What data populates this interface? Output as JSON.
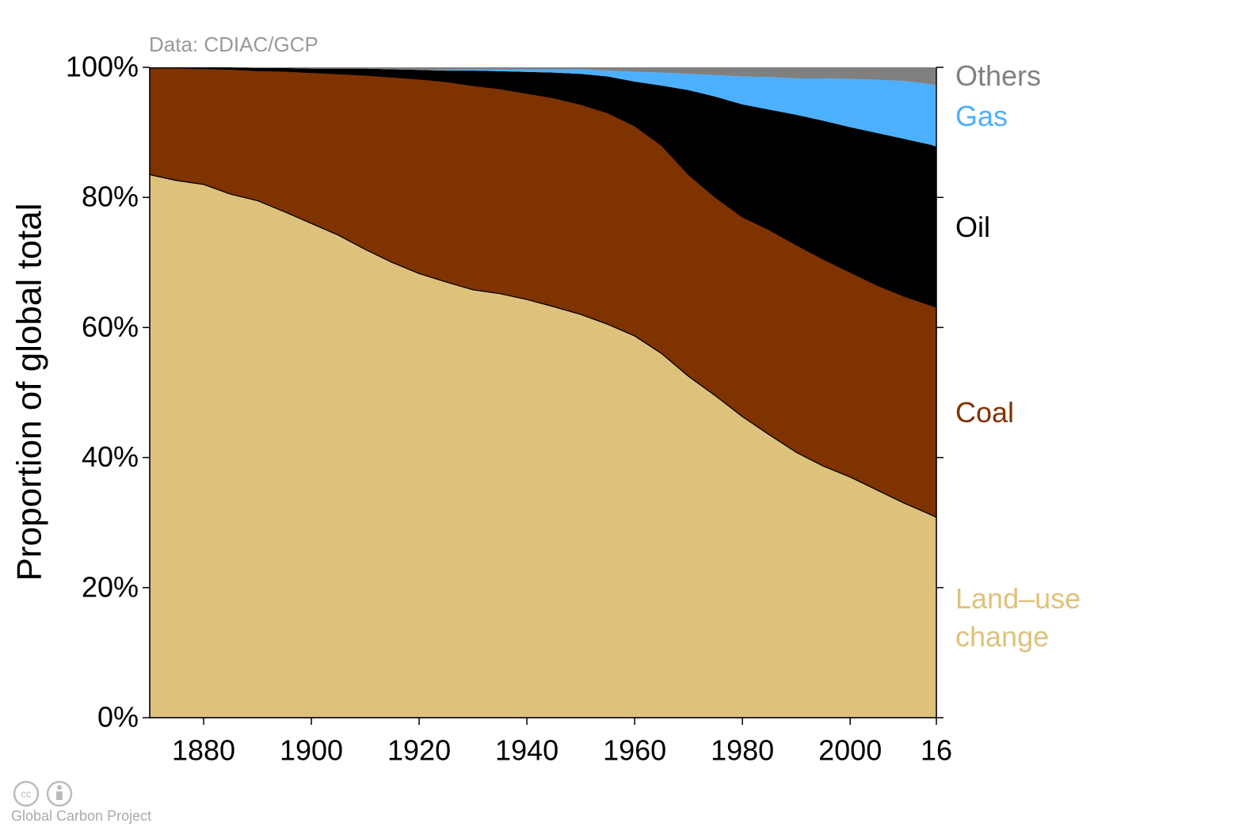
{
  "chart_data": {
    "type": "stacked-area",
    "source": "Data: CDIAC/GCP",
    "ylabel": "Proportion of global total",
    "footer": "Global Carbon Project",
    "x": [
      1870,
      1875,
      1880,
      1885,
      1890,
      1895,
      1900,
      1905,
      1910,
      1915,
      1920,
      1925,
      1930,
      1935,
      1940,
      1945,
      1950,
      1955,
      1960,
      1965,
      1970,
      1975,
      1980,
      1985,
      1990,
      1995,
      2000,
      2005,
      2010,
      2015,
      2016
    ],
    "xlim": [
      1870,
      2016
    ],
    "xticks": [
      1880,
      1900,
      1920,
      1940,
      1960,
      1980,
      2000,
      {
        "value": 2016,
        "label": "16"
      }
    ],
    "ylim": [
      0,
      100
    ],
    "yticks": [
      {
        "value": 0,
        "label": "0%"
      },
      {
        "value": 20,
        "label": "20%"
      },
      {
        "value": 40,
        "label": "40%"
      },
      {
        "value": 60,
        "label": "60%"
      },
      {
        "value": 80,
        "label": "80%"
      },
      {
        "value": 100,
        "label": "100%"
      }
    ],
    "series": [
      {
        "name": "Land–use change",
        "color": "#dec27c",
        "values": [
          83.5,
          82.6,
          82,
          80.5,
          79.5,
          77.8,
          76,
          74.2,
          72,
          70,
          68.3,
          67,
          65.8,
          65.2,
          64.3,
          63.2,
          62,
          60.5,
          58.7,
          56,
          52.5,
          49.5,
          46.3,
          43.5,
          40.8,
          38.7,
          37,
          35,
          33,
          31.2,
          30.8
        ]
      },
      {
        "name": "Coal",
        "color": "#7f3300",
        "values": [
          16.4,
          17.3,
          17.8,
          19.2,
          20,
          21.6,
          23.2,
          24.8,
          26.8,
          28.5,
          29.9,
          30.8,
          31.4,
          31.5,
          31.7,
          32.1,
          32.3,
          32.5,
          32.3,
          32,
          31,
          30.5,
          30.7,
          31.5,
          31.9,
          31.8,
          31.5,
          31.5,
          31.8,
          32.2,
          32.3
        ]
      },
      {
        "name": "Oil",
        "color": "#000000",
        "values": [
          0.1,
          0.1,
          0.2,
          0.3,
          0.4,
          0.5,
          0.6,
          0.8,
          1.0,
          1.2,
          1.4,
          1.7,
          2.3,
          2.7,
          3.3,
          3.9,
          4.7,
          5.6,
          6.8,
          9.2,
          13,
          15.5,
          17.3,
          18.5,
          20,
          21.3,
          22.3,
          23.4,
          24.2,
          24.7,
          24.7
        ]
      },
      {
        "name": "Gas",
        "color": "#4cb0ff",
        "values": [
          0,
          0,
          0,
          0,
          0,
          0,
          0,
          0,
          0,
          0,
          0,
          0.1,
          0.2,
          0.3,
          0.4,
          0.5,
          0.7,
          0.9,
          1.5,
          2,
          2.5,
          3.3,
          4.3,
          5,
          5.6,
          6.5,
          7.4,
          8.2,
          8.9,
          9.3,
          9.4
        ]
      },
      {
        "name": "Others",
        "color": "#808080",
        "values": [
          0,
          0,
          0,
          0,
          0.1,
          0.1,
          0.2,
          0.2,
          0.2,
          0.3,
          0.4,
          0.4,
          0.3,
          0.3,
          0.3,
          0.3,
          0.3,
          0.5,
          0.7,
          0.8,
          1,
          1.2,
          1.4,
          1.5,
          1.7,
          1.7,
          1.8,
          1.9,
          2.1,
          2.6,
          2.8
        ]
      }
    ]
  }
}
